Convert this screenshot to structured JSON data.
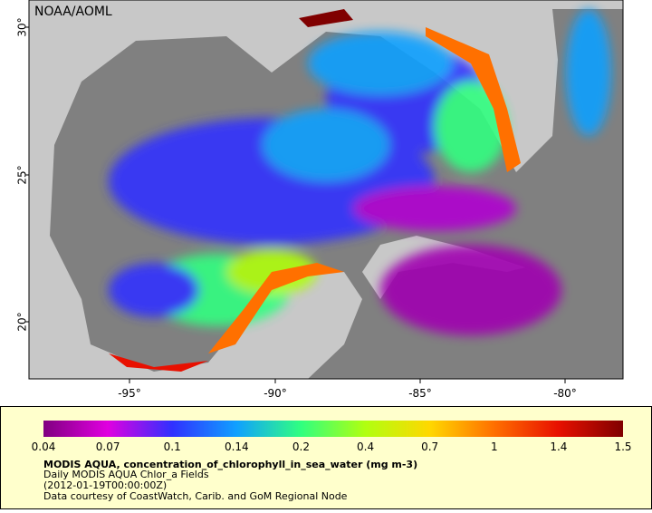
{
  "map": {
    "credit": "NOAA/AOML",
    "lat_labels": [
      "30°",
      "25°",
      "20°"
    ],
    "lon_labels": [
      "-95°",
      "-90°",
      "-85°",
      "-80°"
    ]
  },
  "legend": {
    "ticks": [
      0.04,
      0.07,
      0.1,
      0.14,
      0.2,
      0.4,
      0.7,
      1,
      1.4,
      1.5
    ],
    "title": "MODIS AQUA, concentration_of_chlorophyll_in_sea_water (mg m-3)",
    "lines": [
      "Daily MODIS AQUA Chlor_a Fields",
      "(2012-01-19T00:00:00Z)",
      "Data courtesy of CoastWatch, Carib. and GoM Regional Node"
    ]
  }
}
